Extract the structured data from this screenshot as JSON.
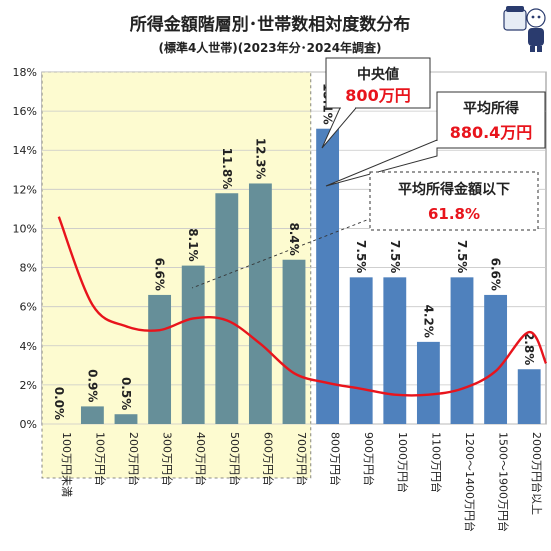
{
  "chart_data": {
    "type": "bar",
    "title": "所得金額階層別･世帯数相対度数分布",
    "subtitle": "(標準4人世帯)(2023年分･2024年調査)",
    "categories": [
      "100万円未満",
      "100万円台",
      "200万円台",
      "300万円台",
      "400万円台",
      "500万円台",
      "600万円台",
      "700万円台",
      "800万円台",
      "900万円台",
      "1000万円台",
      "1100万円台",
      "1200〜1400万円台",
      "1500〜1900万円台",
      "2000万円台以上"
    ],
    "values": [
      0.0,
      0.9,
      0.5,
      6.6,
      8.1,
      11.8,
      12.3,
      8.4,
      15.1,
      7.5,
      7.5,
      4.2,
      7.5,
      6.6,
      2.8
    ],
    "data_labels": [
      "0.0%",
      "0.9%",
      "0.5%",
      "6.6%",
      "8.1%",
      "11.8%",
      "12.3%",
      "8.4%",
      "15.1%",
      "7.5%",
      "7.5%",
      "4.2%",
      "7.5%",
      "6.6%",
      "2.8%"
    ],
    "yticks": [
      "0%",
      "2%",
      "4%",
      "6%",
      "8%",
      "10%",
      "12%",
      "14%",
      "16%",
      "18%"
    ],
    "ylim": [
      0,
      18
    ],
    "grid": true,
    "xlabel": "",
    "ylabel": "",
    "below_average_count": 8,
    "trend_line": {
      "color": "#e8141c",
      "points": [
        [
          0,
          10.6
        ],
        [
          1,
          6.1
        ],
        [
          2,
          5.0
        ],
        [
          3,
          4.8
        ],
        [
          4,
          5.4
        ],
        [
          5,
          5.3
        ],
        [
          6,
          4.1
        ],
        [
          7,
          2.6
        ],
        [
          8,
          2.1
        ],
        [
          9,
          1.8
        ],
        [
          10,
          1.5
        ],
        [
          11,
          1.5
        ],
        [
          12,
          1.8
        ],
        [
          13,
          2.7
        ],
        [
          14,
          4.7
        ],
        [
          14.5,
          3.1
        ]
      ]
    },
    "colors": {
      "bar_below_average": "#668f99",
      "bar_above_average": "#4f81bd",
      "shade": "#fdfbd0",
      "trend": "#e8141c",
      "callout_red": "#e8141c"
    },
    "callouts": {
      "median": {
        "label": "中央値",
        "value": "800万円"
      },
      "average": {
        "label": "平均所得",
        "value": "880.4万円"
      },
      "below_average": {
        "label": "平均所得金額以下",
        "value": "61.8%"
      }
    }
  }
}
